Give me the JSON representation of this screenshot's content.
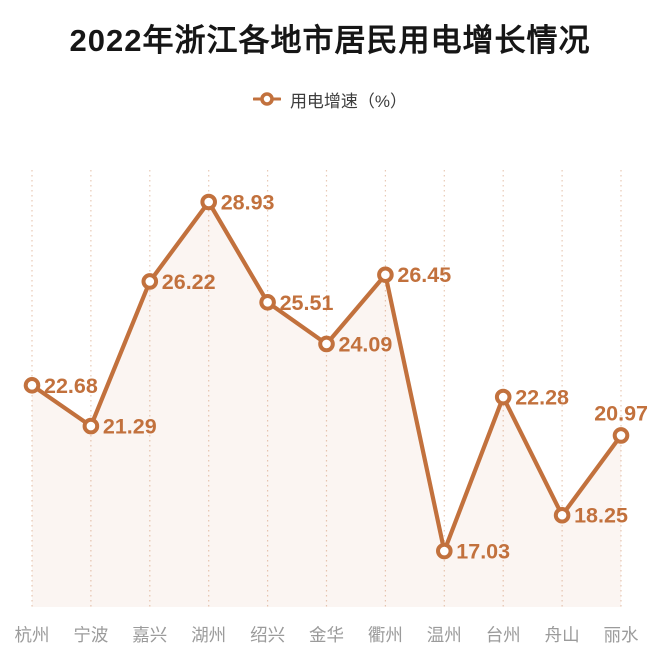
{
  "title": "2022年浙江各地市居民用电增长情况",
  "legend": {
    "label": "用电增速（%）",
    "marker_icon": "line-with-hollow-circle"
  },
  "colors": {
    "line": "#c2713d",
    "marker_fill": "#ffffff",
    "point_label": "#c2713d",
    "gridline": "rgba(194,113,61,0.38)",
    "area_fill": "rgba(193,120,70,0.07)",
    "axis_label": "#9b9b9b",
    "title_text": "#161616",
    "legend_text": "#3d3d3d"
  },
  "chart_data": {
    "type": "line",
    "title": "2022年浙江各地市居民用电增长情况",
    "legend": [
      "用电增速（%）"
    ],
    "legend_position": "top-center",
    "categories": [
      "杭州",
      "宁波",
      "嘉兴",
      "湖州",
      "绍兴",
      "金华",
      "衢州",
      "温州",
      "台州",
      "舟山",
      "丽水"
    ],
    "series": [
      {
        "name": "用电增速（%）",
        "values": [
          22.68,
          21.29,
          26.22,
          28.93,
          25.51,
          24.09,
          26.45,
          17.03,
          22.28,
          18.25,
          20.97
        ]
      }
    ],
    "xlabel": "",
    "ylabel": "",
    "ylim": [
      15,
      30
    ],
    "grid": "vertical-dotted",
    "marker": "hollow-circle",
    "area": true,
    "data_labels": true
  }
}
